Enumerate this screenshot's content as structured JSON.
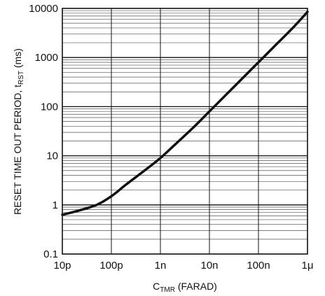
{
  "chart_data": {
    "type": "line",
    "title": "",
    "xlabel": {
      "main": "C",
      "sub": "TMR",
      "rest": " (FARAD)"
    },
    "ylabel": {
      "main": "RESET TIME OUT PERIOD, t",
      "sub": "RST",
      "rest": " (ms)"
    },
    "x_scale": "log",
    "y_scale": "log",
    "xlim": [
      1e-11,
      1e-06
    ],
    "ylim": [
      0.1,
      10000
    ],
    "x_ticks": [
      {
        "value": 1e-11,
        "label": "10p"
      },
      {
        "value": 1e-10,
        "label": "100p"
      },
      {
        "value": 1e-09,
        "label": "1n"
      },
      {
        "value": 1e-08,
        "label": "10n"
      },
      {
        "value": 1e-07,
        "label": "100n"
      },
      {
        "value": 1e-06,
        "label": "1μ"
      }
    ],
    "y_ticks": [
      {
        "value": 0.1,
        "label": "0.1"
      },
      {
        "value": 1,
        "label": "1"
      },
      {
        "value": 10,
        "label": "10"
      },
      {
        "value": 100,
        "label": "100"
      },
      {
        "value": 1000,
        "label": "1000"
      },
      {
        "value": 10000,
        "label": "10000"
      }
    ],
    "grid": true,
    "series": [
      {
        "color": "#111111",
        "x": [
          1e-11,
          2e-11,
          5e-11,
          1e-10,
          2e-10,
          5e-10,
          1e-09,
          2e-09,
          5e-09,
          1e-08,
          2e-08,
          5e-08,
          1e-07,
          2e-07,
          5e-07,
          1e-06
        ],
        "y": [
          0.63,
          0.75,
          1.0,
          1.5,
          2.6,
          5.2,
          9.0,
          17,
          40,
          80,
          160,
          400,
          800,
          1600,
          4000,
          8500
        ]
      }
    ]
  }
}
